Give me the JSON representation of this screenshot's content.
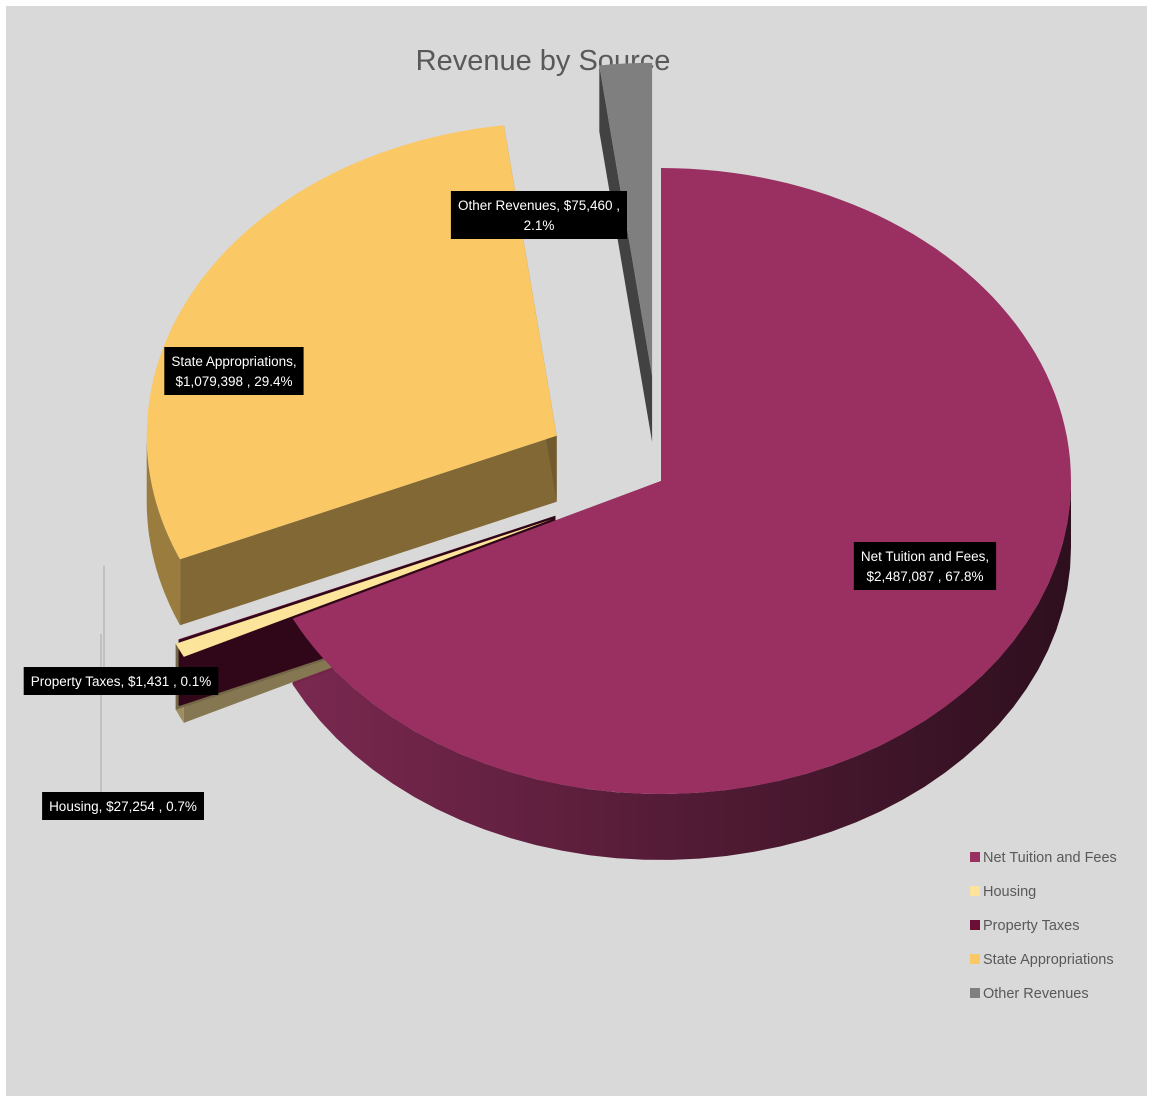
{
  "chart_data": {
    "type": "pie",
    "title": "Revenue by Source",
    "categories": [
      "Net Tuition and Fees",
      "Housing",
      "Property Taxes",
      "State Appropriations",
      "Other Revenues"
    ],
    "values": [
      2487087,
      27254,
      1431,
      1079398,
      75460
    ],
    "percents": [
      67.8,
      0.7,
      0.1,
      29.4,
      2.1
    ],
    "colors": {
      "Net Tuition and Fees": "#993061",
      "Housing": "#fde49b",
      "Property Taxes": "#6b0f36",
      "State Appropriations": "#fac865",
      "Other Revenues": "#7f7f7f"
    },
    "data_labels": [
      {
        "series": "Net Tuition and Fees",
        "lines": [
          "Net Tuition and Fees,",
          "$2,487,087 , 67.8%"
        ]
      },
      {
        "series": "Housing",
        "lines": [
          "Housing,  $27,254 , 0.7%"
        ]
      },
      {
        "series": "Property Taxes",
        "lines": [
          "Property Taxes,  $1,431 , 0.1%"
        ]
      },
      {
        "series": "State Appropriations",
        "lines": [
          "State Appropriations,",
          "$1,079,398 , 29.4%"
        ]
      },
      {
        "series": "Other Revenues",
        "lines": [
          "Other Revenues,  $75,460 ,",
          "2.1%"
        ]
      }
    ],
    "legend": {
      "position": "bottom-right",
      "items": [
        "Net Tuition and Fees",
        "Housing",
        "Property Taxes",
        "State Appropriations",
        "Other Revenues"
      ]
    },
    "style": "3D exploded pie"
  }
}
